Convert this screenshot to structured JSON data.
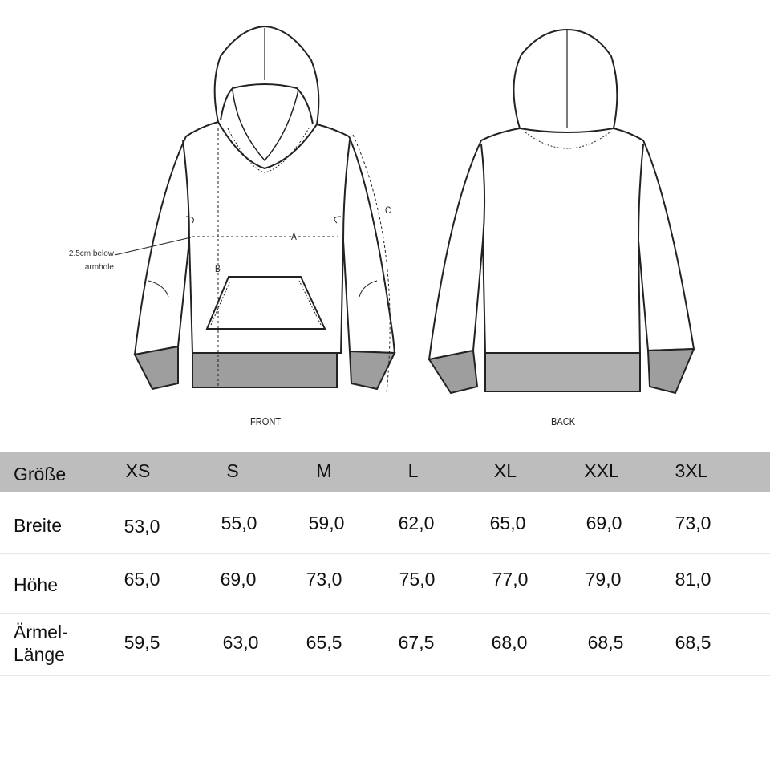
{
  "diagram": {
    "front_label": "FRONT",
    "back_label": "BACK",
    "note": "2.5cm below armhole",
    "note_line1": "2.5cm below",
    "note_line2": "armhole",
    "measure_a": "A",
    "measure_b": "B",
    "measure_c": "C",
    "rib_color": "#9e9e9e"
  },
  "table": {
    "header_label": "Größe",
    "sizes": [
      "XS",
      "S",
      "M",
      "L",
      "XL",
      "XXL",
      "3XL"
    ],
    "header_color": "#bdbdbd",
    "rows": [
      {
        "label": "Breite",
        "values": [
          "53,0",
          "55,0",
          "59,0",
          "62,0",
          "65,0",
          "69,0",
          "73,0"
        ]
      },
      {
        "label": "Höhe",
        "values": [
          "65,0",
          "69,0",
          "73,0",
          "75,0",
          "77,0",
          "79,0",
          "81,0"
        ]
      },
      {
        "label_line1": "Ärmel-",
        "label_line2": "Länge",
        "values": [
          "59,5",
          "63,0",
          "65,5",
          "67,5",
          "68,0",
          "68,5",
          "68,5"
        ]
      }
    ]
  }
}
